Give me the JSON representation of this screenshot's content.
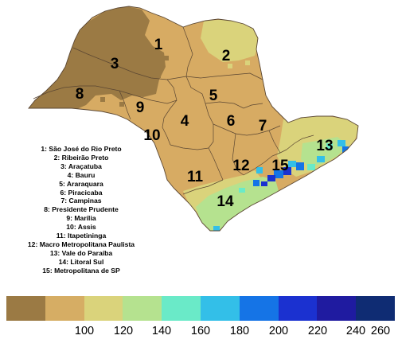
{
  "map": {
    "region_labels": [
      "1",
      "2",
      "3",
      "4",
      "5",
      "6",
      "7",
      "8",
      "9",
      "10",
      "11",
      "12",
      "13",
      "14",
      "15"
    ],
    "legend_items": [
      "1: São José do Rio Preto",
      "2: Ribeirão Preto",
      "3: Araçatuba",
      "4: Bauru",
      "5: Araraquara",
      "6: Piracicaba",
      "7: Campinas",
      "8: Presidente Prudente",
      "9: Marília",
      "10: Assis",
      "11: Itapetininga",
      "12: Macro Metropolitana Paulista",
      "13: Vale do Paraíba",
      "14: Litoral Sul",
      "15: Metropolitana de SP"
    ],
    "colorbar": {
      "colors": [
        "#9b7a44",
        "#d6ad64",
        "#dad37b",
        "#b5e28f",
        "#6aeac8",
        "#33bfe8",
        "#1574e6",
        "#1b31d0",
        "#1f1ba0",
        "#0f2c73"
      ],
      "tick_labels": [
        "100",
        "120",
        "140",
        "160",
        "180",
        "200",
        "220",
        "240",
        "260"
      ]
    },
    "fill_colors": {
      "background": "#d7ab63",
      "dark": "#9b7a44",
      "light": "#dad37b",
      "green": "#b5e28f",
      "cyan": "#33bfe8",
      "blue": "#1574e6",
      "deep_blue": "#1b31d0",
      "border": "#5a4632"
    }
  }
}
